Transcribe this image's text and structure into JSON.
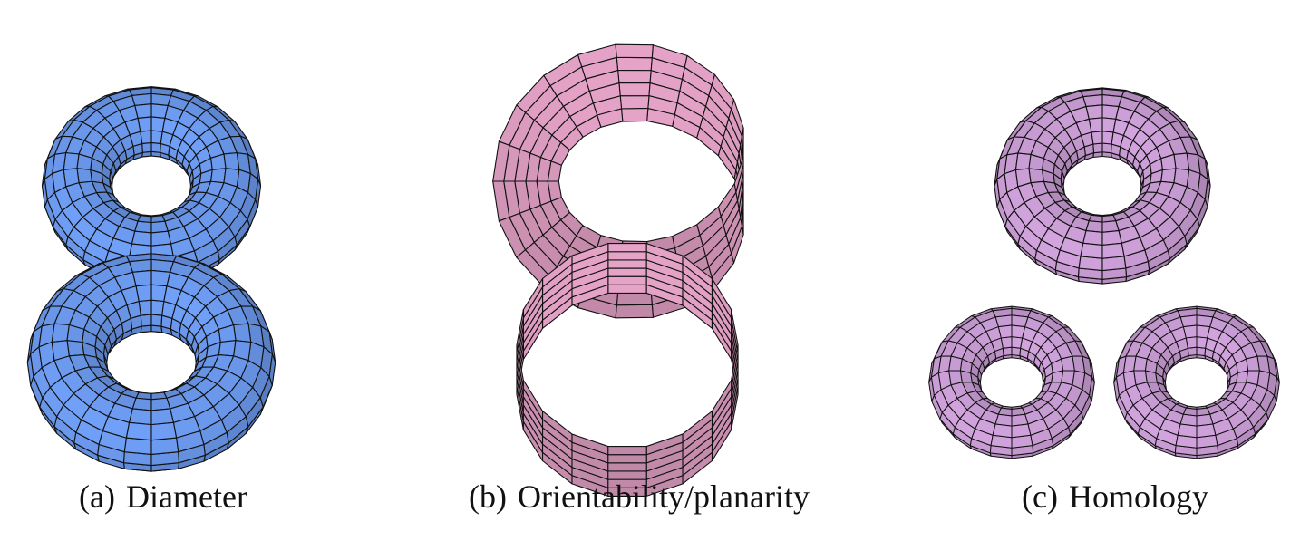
{
  "colors": {
    "diameter": "#6a97ea",
    "orientability": "#e6a3c8",
    "homology": "#c79bd2",
    "edge": "#111111"
  },
  "panels": [
    {
      "id": "a",
      "tag": "(a)",
      "caption": "Diameter",
      "shapes": [
        "torus",
        "torus"
      ]
    },
    {
      "id": "b",
      "tag": "(b)",
      "caption": "Orientability/planarity",
      "shapes": [
        "mobius-strip",
        "cylinder-band"
      ]
    },
    {
      "id": "c",
      "tag": "(c)",
      "caption": "Homology",
      "shapes": [
        "torus",
        "torus",
        "torus"
      ]
    }
  ]
}
